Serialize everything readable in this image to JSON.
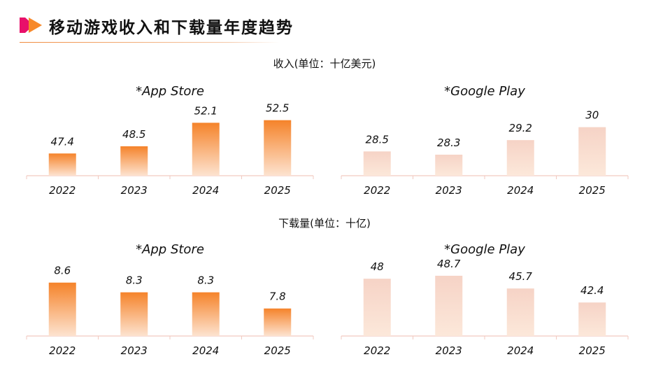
{
  "title": "移动游戏收入和下载量年度趋势",
  "sections": {
    "revenue": "收入(单位：十亿美元)",
    "downloads": "下载量(单位：十亿)"
  },
  "colors": {
    "app_store_top": "#f5832a",
    "app_store_bottom": "#fde3d0",
    "google_play_top": "#f6d3c6",
    "google_play_bottom": "#fce8da",
    "axis": "#f2c9c0",
    "accent_pink": "#e8106a",
    "accent_orange": "#f7892b"
  },
  "chart_data": [
    {
      "type": "bar",
      "group": "revenue",
      "title": "*App Store",
      "categories": [
        "2022",
        "2023",
        "2024",
        "2025"
      ],
      "values": [
        47.4,
        48.5,
        52.1,
        52.5
      ],
      "ylim": [
        44,
        56
      ]
    },
    {
      "type": "bar",
      "group": "revenue",
      "title": "*Google Play",
      "categories": [
        "2022",
        "2023",
        "2024",
        "2025"
      ],
      "values": [
        28.5,
        28.3,
        29.2,
        30
      ],
      "ylim": [
        27,
        31.5
      ]
    },
    {
      "type": "bar",
      "group": "downloads",
      "title": "*App Store",
      "categories": [
        "2022",
        "2023",
        "2024",
        "2025"
      ],
      "values": [
        8.6,
        8.3,
        8.3,
        7.8
      ],
      "ylim": [
        6.95,
        9.2
      ]
    },
    {
      "type": "bar",
      "group": "downloads",
      "title": "*Google Play",
      "categories": [
        "2022",
        "2023",
        "2024",
        "2025"
      ],
      "values": [
        48,
        48.7,
        45.7,
        42.4
      ],
      "ylim": [
        34.5,
        51
      ]
    }
  ]
}
